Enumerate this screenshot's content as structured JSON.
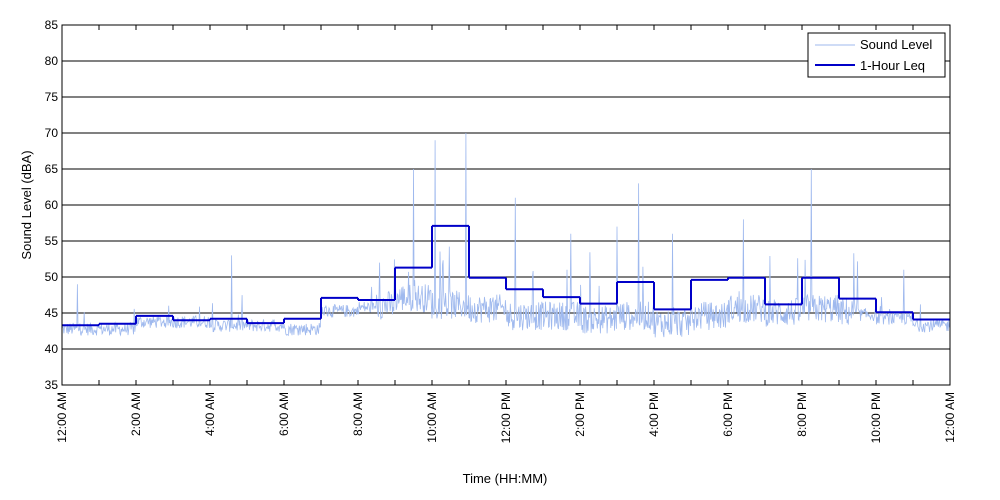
{
  "chart_data": {
    "type": "line",
    "xlabel": "Time (HH:MM)",
    "ylabel": "Sound Level (dBA)",
    "ylim": [
      35,
      85
    ],
    "xlim": [
      "12:00 AM",
      "12:00 AM (+1 day)"
    ],
    "yticks": [
      35,
      40,
      45,
      50,
      55,
      60,
      65,
      70,
      75,
      80,
      85
    ],
    "xtick_labels": [
      "12:00 AM",
      "2:00 AM",
      "4:00 AM",
      "6:00 AM",
      "8:00 AM",
      "10:00 AM",
      "12:00 PM",
      "2:00 PM",
      "4:00 PM",
      "6:00 PM",
      "8:00 PM",
      "10:00 PM",
      "12:00 AM"
    ],
    "grid": "horizontal",
    "legend_position": "top-right",
    "colors": {
      "sound_level": "#9fb9ee",
      "leq": "#0000c8"
    },
    "series": [
      {
        "name": "Sound Level",
        "style": "thin light-blue noisy trace",
        "hourly_baseline_dBA": [
          42.5,
          42.5,
          43.5,
          43.5,
          43.0,
          43.0,
          42.5,
          45.0,
          45.5,
          46.5,
          45.5,
          45.0,
          44.0,
          44.0,
          43.5,
          44.0,
          43.0,
          44.0,
          45.0,
          44.5,
          45.0,
          44.5,
          44.0,
          43.0
        ],
        "notable_peaks": [
          {
            "time": "12:25 AM",
            "dBA": 49
          },
          {
            "time": "4:35 AM",
            "dBA": 53
          },
          {
            "time": "8:35 AM",
            "dBA": 52
          },
          {
            "time": "9:30 AM",
            "dBA": 65
          },
          {
            "time": "10:05 AM",
            "dBA": 69
          },
          {
            "time": "10:55 AM",
            "dBA": 70
          },
          {
            "time": "12:15 PM",
            "dBA": 61
          },
          {
            "time": "1:45 PM",
            "dBA": 56
          },
          {
            "time": "3:00 PM",
            "dBA": 57
          },
          {
            "time": "3:35 PM",
            "dBA": 63
          },
          {
            "time": "4:30 PM",
            "dBA": 56
          },
          {
            "time": "6:25 PM",
            "dBA": 58
          },
          {
            "time": "8:15 PM",
            "dBA": 65
          },
          {
            "time": "10:45 PM",
            "dBA": 51
          }
        ]
      },
      {
        "name": "1-Hour Leq",
        "style": "thick dark-blue step line",
        "hour_start": [
          "12:00 AM",
          "1:00 AM",
          "2:00 AM",
          "3:00 AM",
          "4:00 AM",
          "5:00 AM",
          "6:00 AM",
          "7:00 AM",
          "8:00 AM",
          "9:00 AM",
          "10:00 AM",
          "11:00 AM",
          "12:00 PM",
          "1:00 PM",
          "2:00 PM",
          "3:00 PM",
          "4:00 PM",
          "5:00 PM",
          "6:00 PM",
          "7:00 PM",
          "8:00 PM",
          "9:00 PM",
          "10:00 PM",
          "11:00 PM"
        ],
        "values": [
          43.3,
          43.5,
          44.6,
          44.0,
          44.2,
          43.6,
          44.2,
          47.1,
          46.8,
          51.3,
          57.1,
          49.9,
          48.3,
          47.2,
          46.3,
          49.3,
          45.5,
          49.6,
          49.9,
          46.2,
          49.9,
          47.0,
          45.1,
          44.1
        ]
      }
    ]
  }
}
